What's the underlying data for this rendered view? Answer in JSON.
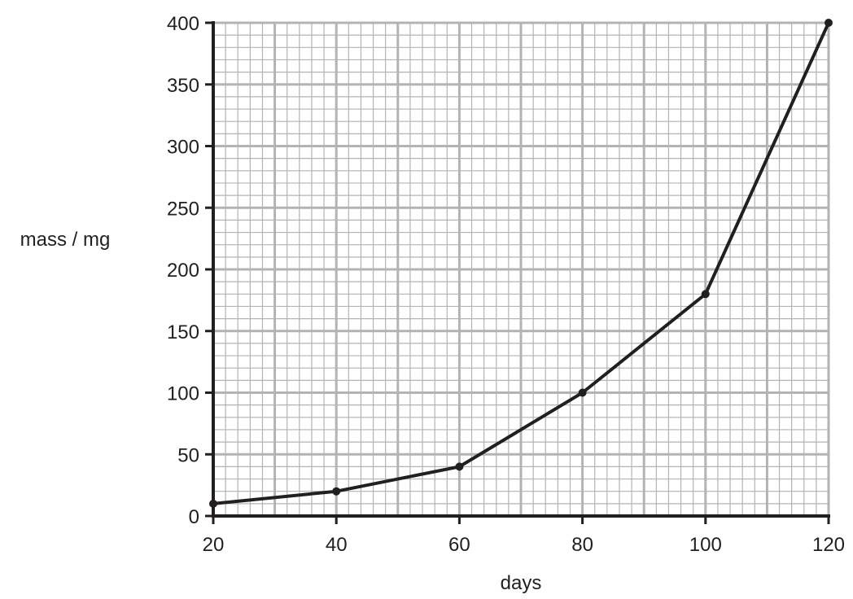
{
  "chart_data": {
    "type": "line",
    "title": "",
    "xlabel": "days",
    "ylabel": "mass / mg",
    "xlim": [
      20,
      120
    ],
    "ylim": [
      0,
      400
    ],
    "grid": true,
    "x_ticks": [
      20,
      40,
      60,
      80,
      100,
      120
    ],
    "x_tick_labels": [
      "20",
      "40",
      "60",
      "80",
      "100",
      "120"
    ],
    "y_ticks": [
      0,
      50,
      100,
      150,
      200,
      250,
      300,
      350,
      400
    ],
    "y_tick_labels": [
      "0",
      "50",
      "100",
      "150",
      "200",
      "250",
      "300",
      "350",
      "400"
    ],
    "series": [
      {
        "x": [
          20,
          40,
          60,
          80,
          100,
          120
        ],
        "values": [
          10,
          20,
          40,
          100,
          180,
          400
        ]
      }
    ],
    "colors": {
      "line": "#231f20",
      "minor_grid": "#b3b3b3",
      "major_grid": "#b3b3b3",
      "axis": "#231f20"
    }
  }
}
